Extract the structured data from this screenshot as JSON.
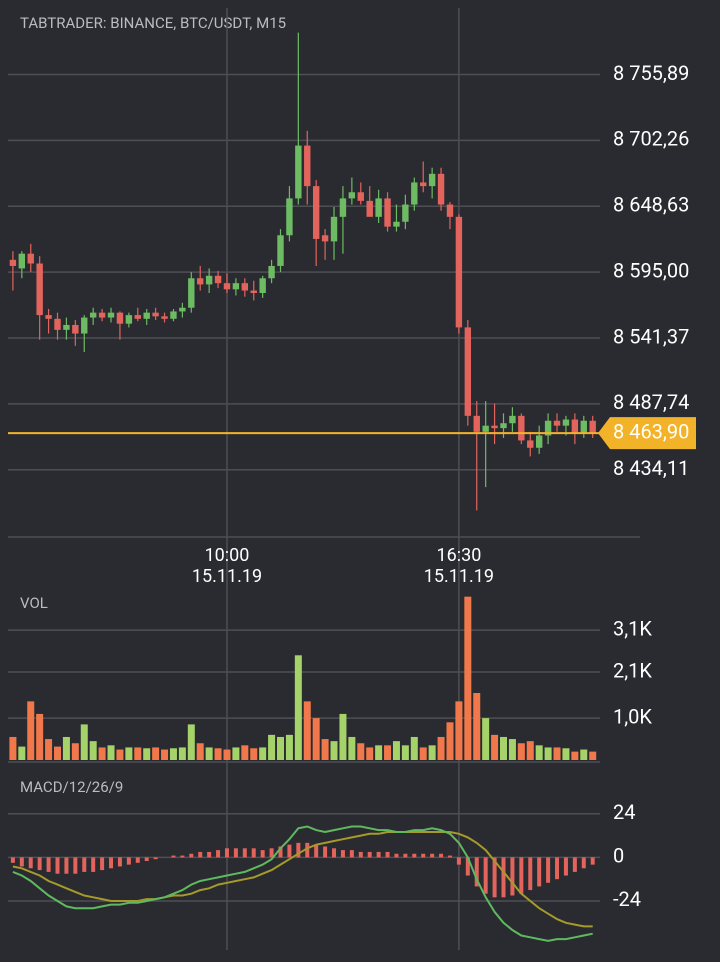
{
  "chart_data": [
    {
      "type": "candlestick",
      "title": "TABTRADER: BINANCE, BTC/USDT, M15",
      "categories": [
        null,
        null,
        null,
        null,
        null,
        null,
        null,
        null,
        null,
        null,
        null,
        null,
        null,
        null,
        null,
        null,
        null,
        null,
        null,
        null,
        null,
        null,
        null,
        null,
        "10:00",
        null,
        null,
        null,
        null,
        null,
        null,
        null,
        null,
        null,
        null,
        null,
        null,
        null,
        null,
        null,
        null,
        null,
        null,
        null,
        null,
        null,
        null,
        null,
        null,
        null,
        "16:30",
        null,
        null,
        null,
        null,
        null,
        null,
        null,
        null,
        null,
        null,
        null,
        null,
        null,
        null,
        null
      ],
      "category_dates": [
        null,
        null,
        null,
        null,
        null,
        null,
        null,
        null,
        null,
        null,
        null,
        null,
        null,
        null,
        null,
        null,
        null,
        null,
        null,
        null,
        null,
        null,
        null,
        null,
        "15.11.19",
        null,
        null,
        null,
        null,
        null,
        null,
        null,
        null,
        null,
        null,
        null,
        null,
        null,
        null,
        null,
        null,
        null,
        null,
        null,
        null,
        null,
        null,
        null,
        null,
        null,
        "15.11.19",
        null,
        null,
        null,
        null,
        null,
        null,
        null,
        null,
        null,
        null,
        null,
        null,
        null,
        null,
        null
      ],
      "open": [
        8605,
        8598,
        8610,
        8602,
        8560,
        8557,
        8548,
        8552,
        8545,
        8558,
        8562,
        8558,
        8562,
        8553,
        8560,
        8557,
        8562,
        8559,
        8557,
        8563,
        8566,
        8590,
        8585,
        8592,
        8586,
        8581,
        8586,
        8580,
        8578,
        8590,
        8600,
        8625,
        8655,
        8698,
        8665,
        8625,
        8620,
        8640,
        8655,
        8660,
        8653,
        8640,
        8655,
        8632,
        8636,
        8650,
        8668,
        8665,
        8675,
        8650,
        8640,
        8550,
        8478,
        8465,
        8470,
        8468,
        8472,
        8478,
        8458,
        8452,
        8462,
        8474,
        8470,
        8475,
        8464,
        8474
      ],
      "high": [
        8612,
        8612,
        8618,
        8608,
        8565,
        8562,
        8558,
        8556,
        8560,
        8566,
        8565,
        8566,
        8563,
        8562,
        8566,
        8565,
        8566,
        8562,
        8565,
        8570,
        8595,
        8600,
        8598,
        8596,
        8594,
        8590,
        8590,
        8588,
        8592,
        8605,
        8630,
        8665,
        8790,
        8710,
        8670,
        8630,
        8648,
        8665,
        8672,
        8668,
        8665,
        8662,
        8660,
        8650,
        8658,
        8672,
        8685,
        8680,
        8680,
        8652,
        8642,
        8556,
        8490,
        8490,
        8488,
        8480,
        8485,
        8480,
        8465,
        8470,
        8480,
        8480,
        8478,
        8480,
        8478,
        8478
      ],
      "low": [
        8580,
        8590,
        8595,
        8540,
        8545,
        8540,
        8540,
        8535,
        8530,
        8552,
        8555,
        8554,
        8540,
        8550,
        8555,
        8552,
        8556,
        8554,
        8555,
        8558,
        8562,
        8580,
        8578,
        8582,
        8578,
        8576,
        8575,
        8572,
        8574,
        8586,
        8595,
        8620,
        8650,
        8650,
        8600,
        8605,
        8605,
        8610,
        8650,
        8650,
        8642,
        8635,
        8628,
        8628,
        8630,
        8645,
        8660,
        8655,
        8645,
        8630,
        8545,
        8470,
        8401,
        8420,
        8455,
        8460,
        8465,
        8455,
        8445,
        8447,
        8455,
        8465,
        8462,
        8455,
        8460,
        8460
      ],
      "close": [
        8600,
        8610,
        8602,
        8560,
        8557,
        8548,
        8552,
        8545,
        8558,
        8562,
        8558,
        8562,
        8553,
        8560,
        8557,
        8562,
        8559,
        8557,
        8563,
        8566,
        8590,
        8585,
        8592,
        8586,
        8581,
        8586,
        8580,
        8578,
        8590,
        8600,
        8625,
        8655,
        8698,
        8665,
        8622,
        8620,
        8640,
        8655,
        8660,
        8653,
        8640,
        8655,
        8632,
        8636,
        8650,
        8668,
        8665,
        8675,
        8650,
        8640,
        8550,
        8478,
        8465,
        8470,
        8468,
        8472,
        8478,
        8458,
        8452,
        8462,
        8474,
        8470,
        8475,
        8464,
        8474,
        8464
      ],
      "up_color": "#6dbb63",
      "down_color": "#e2645c",
      "ylim": [
        8381,
        8810
      ],
      "yticks": [
        {
          "value": 8755.89,
          "label": "8 755,89"
        },
        {
          "value": 8702.26,
          "label": "8 702,26"
        },
        {
          "value": 8648.63,
          "label": "8 648,63"
        },
        {
          "value": 8595.0,
          "label": "8 595,00"
        },
        {
          "value": 8541.37,
          "label": "8 541,37"
        },
        {
          "value": 8487.74,
          "label": "8 487,74"
        },
        {
          "value": 8434.11,
          "label": "8 434,11"
        }
      ],
      "last_price": {
        "value": 8463.9,
        "label": "8 463,90"
      },
      "last_color": "#f3b329",
      "grid": true
    },
    {
      "type": "bar",
      "title": "VOL",
      "values": [
        550,
        320,
        1400,
        1100,
        500,
        320,
        550,
        400,
        850,
        450,
        300,
        350,
        250,
        300,
        300,
        280,
        300,
        250,
        280,
        300,
        850,
        400,
        300,
        280,
        250,
        300,
        350,
        280,
        300,
        600,
        550,
        600,
        2500,
        1400,
        1000,
        500,
        450,
        1100,
        550,
        400,
        300,
        350,
        350,
        450,
        350,
        550,
        300,
        350,
        550,
        900,
        1400,
        3900,
        1600,
        1000,
        600,
        550,
        500,
        400,
        450,
        350,
        300,
        300,
        280,
        200,
        250,
        200
      ],
      "up_color": "#a5d36a",
      "down_color": "#f1784a",
      "ylim": [
        0,
        3940
      ],
      "yticks": [
        {
          "value": 3100,
          "label": "3,1K"
        },
        {
          "value": 2100,
          "label": "2,1K"
        },
        {
          "value": 1000,
          "label": "1,0K"
        }
      ],
      "grid": true
    },
    {
      "type": "macd",
      "title": "MACD/12/26/9",
      "histogram": [
        -3,
        -5,
        -6,
        -7,
        -8,
        -9,
        -9,
        -9,
        -8,
        -8,
        -7,
        -6,
        -5,
        -4,
        -3,
        -2,
        -1,
        0,
        1,
        1,
        2,
        3,
        3,
        4,
        5,
        5,
        5,
        5,
        4,
        5,
        6,
        7,
        8,
        8,
        7,
        6,
        5,
        4,
        4,
        3,
        3,
        3,
        3,
        2,
        2,
        2,
        2,
        2,
        2,
        1,
        -4,
        -10,
        -16,
        -20,
        -22,
        -22,
        -21,
        -20,
        -18,
        -16,
        -14,
        -12,
        -10,
        -8,
        -6,
        -4
      ],
      "macd": [
        -8,
        -10,
        -13,
        -17,
        -21,
        -24,
        -27,
        -28,
        -28,
        -28,
        -27,
        -26,
        -26,
        -25,
        -25,
        -24,
        -23,
        -22,
        -20,
        -18,
        -15,
        -13,
        -12,
        -11,
        -10,
        -9,
        -8,
        -6,
        -4,
        -1,
        5,
        10,
        16,
        17,
        15,
        14,
        15,
        16,
        17,
        17,
        16,
        15,
        15,
        14,
        14,
        15,
        15,
        16,
        15,
        13,
        8,
        0,
        -12,
        -22,
        -30,
        -36,
        -40,
        -43,
        -44,
        -45,
        -46,
        -45,
        -45,
        -44,
        -43,
        -42
      ],
      "signal": [
        -5,
        -6,
        -8,
        -10,
        -13,
        -15,
        -17,
        -19,
        -21,
        -22,
        -23,
        -24,
        -24,
        -24,
        -24,
        -23,
        -23,
        -22,
        -21,
        -21,
        -20,
        -18,
        -17,
        -15,
        -14,
        -13,
        -12,
        -11,
        -9,
        -7,
        -4,
        -1,
        2,
        5,
        7,
        8,
        9,
        10,
        11,
        12,
        13,
        13,
        14,
        14,
        14,
        14,
        14,
        14,
        14,
        14,
        13,
        11,
        8,
        4,
        -2,
        -8,
        -14,
        -20,
        -24,
        -28,
        -31,
        -34,
        -36,
        -37,
        -38,
        -38
      ],
      "histogram_color": "#e2645c",
      "macd_color": "#5fba5f",
      "signal_color": "#a59a2a",
      "ylim": [
        -51,
        36
      ],
      "yticks": [
        24,
        0,
        -24
      ],
      "grid": true
    }
  ]
}
